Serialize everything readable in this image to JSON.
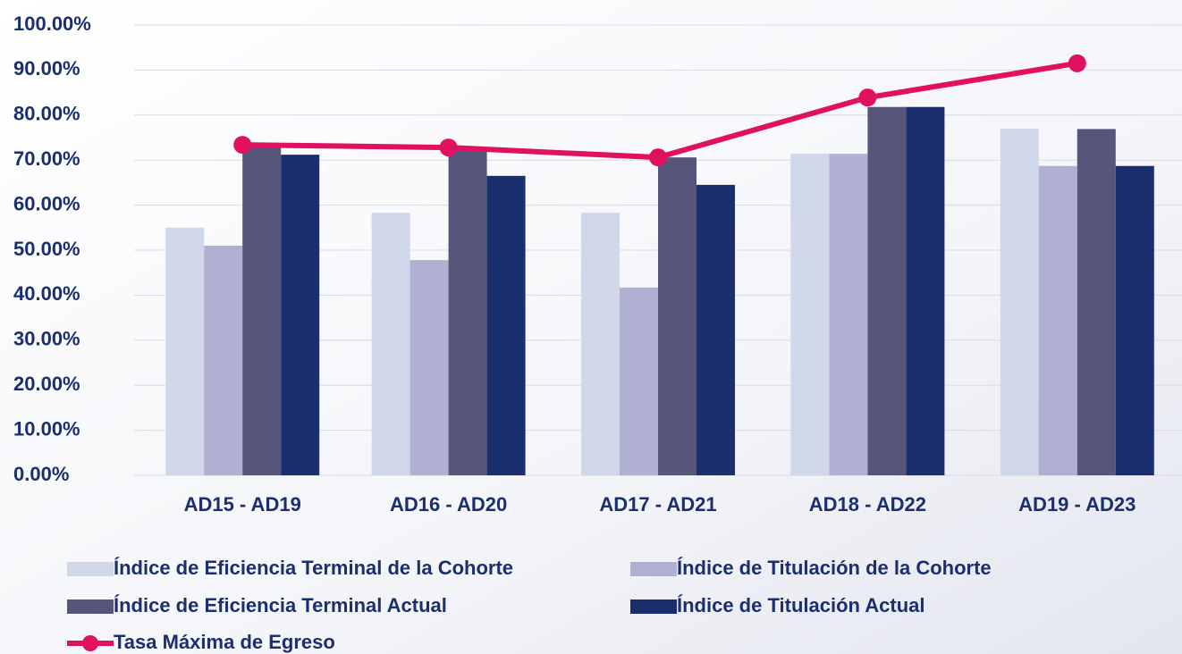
{
  "chart_data": {
    "type": "bar",
    "categories": [
      "AD15 - AD19",
      "AD16 - AD20",
      "AD17 - AD21",
      "AD18 - AD22",
      "AD19 - AD23"
    ],
    "series": [
      {
        "name": "Índice de Eficiencia Terminal de la Cohorte",
        "color": "#d0d7ea",
        "values": [
          55,
          58.3,
          58.3,
          71.4,
          77
        ]
      },
      {
        "name": "Índice de Titulación de la Cohorte",
        "color": "#b0b1d2",
        "values": [
          51,
          47.8,
          41.7,
          71.4,
          68.7
        ]
      },
      {
        "name": "Índice de Eficiencia Terminal Actual",
        "color": "#57567a",
        "values": [
          73.5,
          72.8,
          70.6,
          81.8,
          76.9
        ]
      },
      {
        "name": "Índice de Titulación Actual",
        "color": "#1b2e6e",
        "values": [
          71.2,
          66.5,
          64.5,
          81.8,
          68.7
        ]
      },
      {
        "name": "Tasa Máxima de Egreso",
        "color": "#e0115f",
        "type": "line",
        "values": [
          73.4,
          72.8,
          70.6,
          83.9,
          91.5
        ]
      }
    ],
    "ylim": [
      0,
      100
    ],
    "yticks": [
      {
        "value": 0,
        "label": "0.00%"
      },
      {
        "value": 10,
        "label": "10.00%"
      },
      {
        "value": 20,
        "label": "20.00%"
      },
      {
        "value": 30,
        "label": "30.00%"
      },
      {
        "value": 40,
        "label": "40.00%"
      },
      {
        "value": 50,
        "label": "50.00%"
      },
      {
        "value": 60,
        "label": "60.00%"
      },
      {
        "value": 70,
        "label": "70.00%"
      },
      {
        "value": 80,
        "label": "80.00%"
      },
      {
        "value": 90,
        "label": "90.00%"
      },
      {
        "value": 100,
        "label": "100.00%"
      }
    ],
    "grid": true
  }
}
